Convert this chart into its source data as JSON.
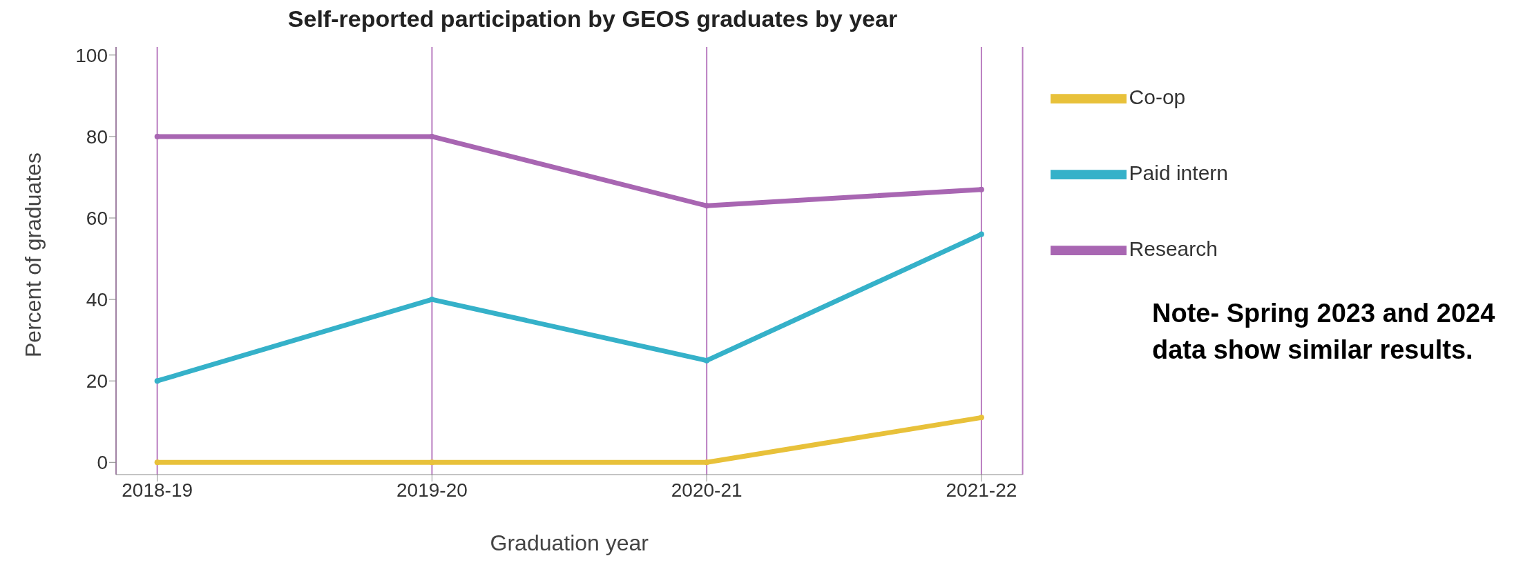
{
  "chart_data": {
    "type": "line",
    "title": "Self-reported participation by GEOS graduates by year",
    "xlabel": "Graduation year",
    "ylabel": "Percent of graduates",
    "categories": [
      "2018-19",
      "2019-20",
      "2020-21",
      "2021-22"
    ],
    "series": [
      {
        "name": "Co-op",
        "color": "#e8c13a",
        "values": [
          0,
          0,
          0,
          11
        ]
      },
      {
        "name": "Paid intern",
        "color": "#35b1c9",
        "values": [
          20,
          40,
          25,
          56
        ]
      },
      {
        "name": "Research",
        "color": "#a866b2",
        "values": [
          80,
          80,
          63,
          67
        ]
      }
    ],
    "ylim": [
      -3,
      102
    ],
    "yticks": [
      0,
      20,
      40,
      60,
      80,
      100
    ],
    "grid": "x",
    "legend": "top right",
    "marker": "circle",
    "line_style": "solid",
    "annotations": [
      "Note- Spring 2023 and 2024 data show similar results."
    ]
  }
}
